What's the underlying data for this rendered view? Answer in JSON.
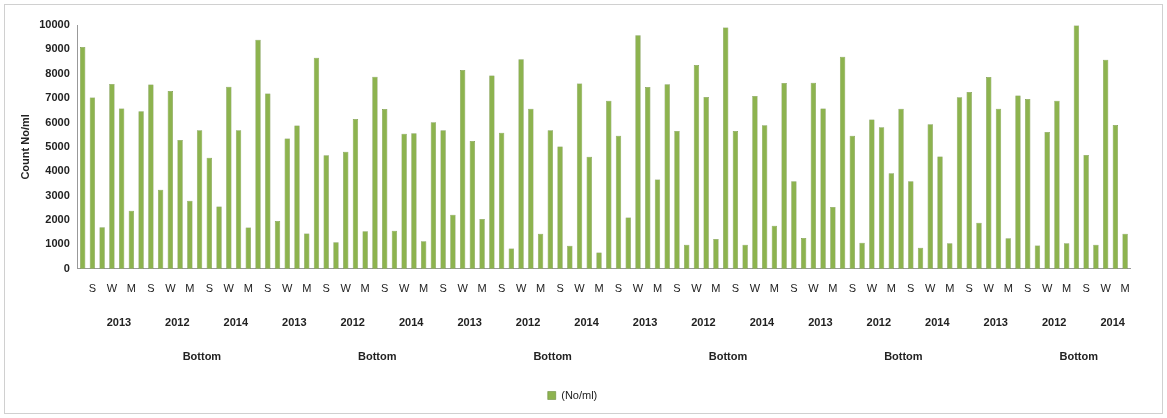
{
  "chart_data": {
    "type": "bar",
    "ylabel": "Count No/ml",
    "categories": [
      null,
      "S",
      null,
      "W",
      null,
      "M",
      null,
      "S",
      null,
      "W",
      null,
      "M",
      null,
      "S",
      null,
      "W",
      null,
      "M",
      null,
      "S",
      null,
      "W",
      null,
      "M",
      null,
      "S",
      null,
      "W",
      null,
      "M",
      null,
      "S",
      null,
      "W",
      null,
      "M",
      null,
      "S",
      null,
      "W",
      null,
      "M",
      null,
      "S",
      null,
      "W",
      null,
      "M",
      null,
      "S",
      null,
      "W",
      null,
      "M",
      null,
      "S",
      null,
      "W",
      null,
      "M",
      null,
      "S",
      null,
      "W",
      null,
      "M",
      null,
      "S",
      null,
      "W",
      null,
      "M",
      null,
      "S",
      null,
      "W",
      null,
      "M",
      null,
      "S",
      null,
      "W",
      null,
      "M",
      null,
      "S",
      null,
      "W",
      null,
      "M",
      null,
      "S",
      null,
      "W",
      null,
      "M",
      null,
      "S",
      null,
      "W",
      null,
      "M",
      null,
      "S",
      null,
      "W",
      null,
      "M"
    ],
    "series": [
      {
        "name": "(No/ml)",
        "color": "#8db34f",
        "values": [
          9100,
          7030,
          1700,
          7580,
          6570,
          2380,
          6460,
          7560,
          3240,
          7290,
          5280,
          2790,
          5680,
          4560,
          2560,
          7470,
          5680,
          1690,
          9390,
          7190,
          1960,
          5340,
          5880,
          1450,
          8660,
          4660,
          1090,
          4800,
          6140,
          1540,
          7880,
          6550,
          1560,
          5540,
          5560,
          1130,
          6010,
          5680,
          2220,
          8150,
          5240,
          2040,
          7930,
          5580,
          830,
          8600,
          6560,
          1440,
          5680,
          5020,
          950,
          7600,
          4600,
          670,
          6890,
          5460,
          2100,
          9580,
          7460,
          3660,
          7570,
          5650,
          990,
          8360,
          7050,
          1220,
          9900,
          5650,
          990,
          7090,
          5890,
          1770,
          7620,
          3590,
          1260,
          7630,
          6570,
          2540,
          8700,
          5460,
          1070,
          6120,
          5810,
          3920,
          6560,
          3590,
          860,
          5930,
          4610,
          1050,
          7040,
          7250,
          1890,
          7870,
          6560,
          1250,
          7110,
          6960,
          960,
          5610,
          6890,
          1050,
          9980,
          4670,
          990,
          8570,
          5900,
          1440
        ]
      }
    ],
    "ylim": [
      0,
      10000
    ],
    "yticks": [
      0,
      1000,
      2000,
      3000,
      4000,
      5000,
      6000,
      7000,
      8000,
      9000,
      10000
    ],
    "grid": false,
    "legend": "bottom",
    "annotations": [
      "2013",
      "2012",
      "2014",
      "2013",
      "2012",
      "2014",
      "2013",
      "2012",
      "2014",
      "2013",
      "2012",
      "2014",
      "2013",
      "2012",
      "2014",
      "2013",
      "2012",
      "2014",
      "Bottom",
      "Bottom",
      "Bottom",
      "Bottom",
      "Bottom",
      "Bottom"
    ]
  }
}
